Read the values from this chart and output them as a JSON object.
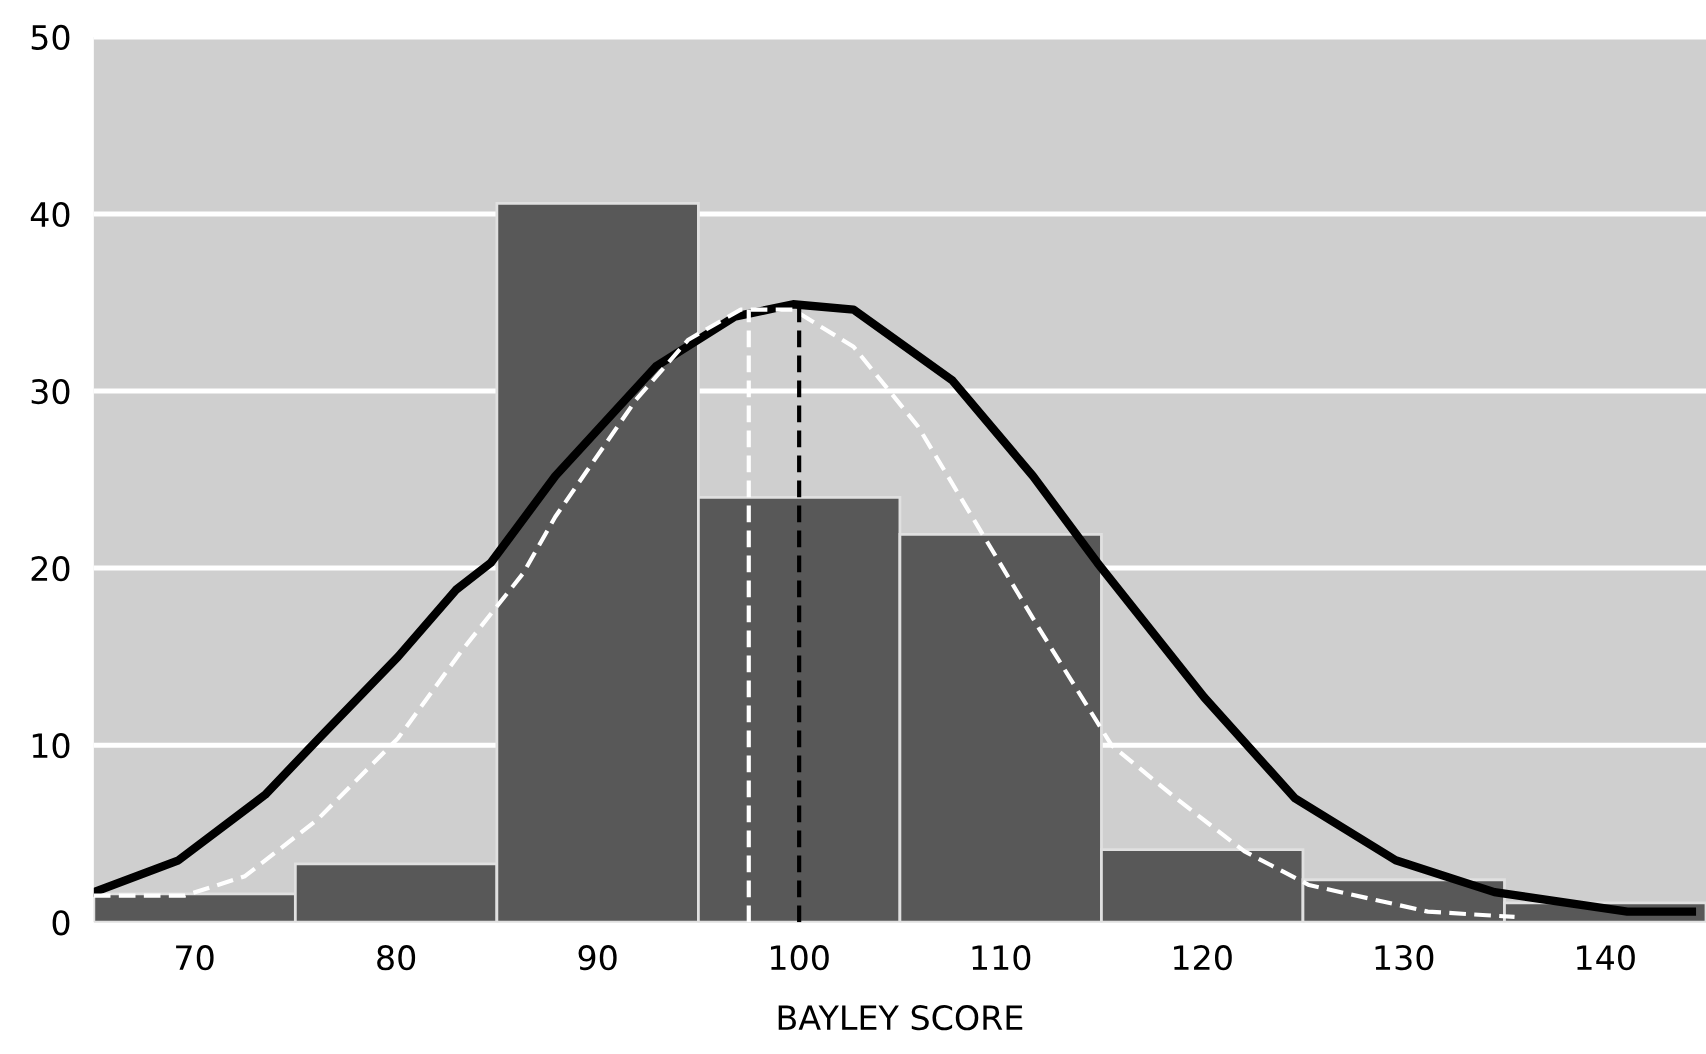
{
  "chart_data": {
    "type": "histogram",
    "xlabel": "BAYLEY SCORE",
    "bins": [
      65,
      75,
      85,
      95,
      105,
      115,
      125,
      135,
      145
    ],
    "values": [
      1.6,
      3.3,
      40.6,
      24.0,
      21.9,
      4.1,
      2.4,
      1.1
    ],
    "color": "#585858",
    "xlim": [
      65,
      145
    ],
    "xticks": [
      70,
      80,
      90,
      100,
      110,
      120,
      130,
      140
    ],
    "ylim": [
      0,
      50
    ],
    "yticks": [
      0,
      10,
      20,
      30,
      40,
      50
    ],
    "grid": "y",
    "series": [
      {
        "type": "line",
        "color": "#000000",
        "line_style": "solid",
        "x": [
          65,
          69.2,
          73.5,
          76.1,
          80.1,
          83,
          84.7,
          87.9,
          92.9,
          96.8,
          99.7,
          102.7,
          107.6,
          111.6,
          114.8,
          120.1,
          124.6,
          129.6,
          134.5,
          141.1,
          144.3
        ],
        "values": [
          1.7,
          3.5,
          7.2,
          10.3,
          15.0,
          18.8,
          20.3,
          25.2,
          31.4,
          34.2,
          34.9,
          34.6,
          30.6,
          25.2,
          20.3,
          12.7,
          7.0,
          3.5,
          1.7,
          0.6,
          0.6
        ]
      },
      {
        "type": "line",
        "color": "#ffffff",
        "line_style": "dashed",
        "x": [
          65,
          69.5,
          72.5,
          76.1,
          80.1,
          83.3,
          86.3,
          87.9,
          91.9,
          94.5,
          97.1,
          99.7,
          102.7,
          105.9,
          108.9,
          111.9,
          115.5,
          118.7,
          122.1,
          125.3,
          131.2,
          135.5
        ],
        "values": [
          1.5,
          1.5,
          2.6,
          5.8,
          10.4,
          15.4,
          19.7,
          22.9,
          29.5,
          32.9,
          34.6,
          34.6,
          32.5,
          28.0,
          22.3,
          16.6,
          10.0,
          7.0,
          4.0,
          2.1,
          0.6,
          0.3
        ]
      },
      {
        "type": "line",
        "color": "#ffffff",
        "line_style": "dashed",
        "x": [
          97.5,
          97.5
        ],
        "values": [
          0,
          34.6
        ]
      },
      {
        "type": "line",
        "color": "#000000",
        "line_style": "dashed",
        "x": [
          100,
          100
        ],
        "values": [
          0,
          34.9
        ]
      }
    ]
  }
}
